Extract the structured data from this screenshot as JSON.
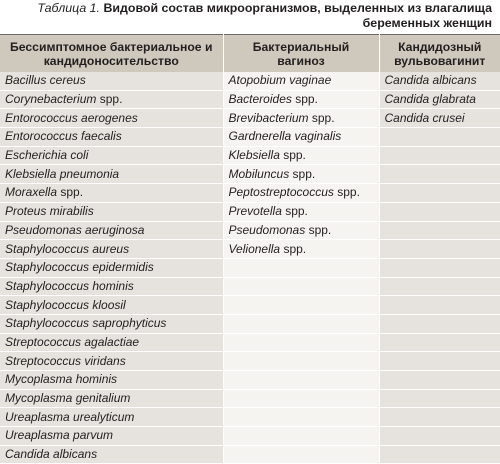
{
  "caption": {
    "label": "Таблица 1.",
    "title": "Видовой состав микроорганизмов, выделенных из влагалища беременных женщин"
  },
  "headers": [
    "Бессимптомное бактериальное и кандидоносительство",
    "Бактериальный вагиноз",
    "Кандидозный вульвовагинит"
  ],
  "rows": [
    [
      "Bacillus cereus",
      "Atopobium vaginae",
      "Candida albicans"
    ],
    [
      "Corynebacterium spp.",
      "Bacteroides spp.",
      "Candida glabrata"
    ],
    [
      "Entorococcus aerogenes",
      "Brevibacterium spp.",
      "Candida crusei"
    ],
    [
      "Entorococcus faecalis",
      "Gardnerella vaginalis",
      ""
    ],
    [
      "Escherichia coli",
      "Klebsiella spp.",
      ""
    ],
    [
      "Klebsiella pneumonia",
      "Mobiluncus spp.",
      ""
    ],
    [
      "Moraxella spp.",
      "Peptostreptococcus spp.",
      ""
    ],
    [
      "Proteus mirabilis",
      "Prevotella spp.",
      ""
    ],
    [
      "Pseudomonas aeruginosa",
      "Pseudomonas spp.",
      ""
    ],
    [
      "Staphylococcus aureus",
      "Velionella spp.",
      ""
    ],
    [
      "Staphylococcus epidermidis",
      "",
      ""
    ],
    [
      "Staphylococcus hominis",
      "",
      ""
    ],
    [
      "Staphylococcus kloosil",
      "",
      ""
    ],
    [
      "Staphylococcus saprophyticus",
      "",
      ""
    ],
    [
      "Streptococcus agalactiae",
      "",
      ""
    ],
    [
      "Streptococcus viridans",
      "",
      ""
    ],
    [
      "Mycoplasma hominis",
      "",
      ""
    ],
    [
      "Mycoplasma genitalium",
      "",
      ""
    ],
    [
      "Ureaplasma urealyticum",
      "",
      ""
    ],
    [
      "Ureaplasma parvum",
      "",
      ""
    ],
    [
      "Candida albicans",
      "",
      ""
    ]
  ]
}
